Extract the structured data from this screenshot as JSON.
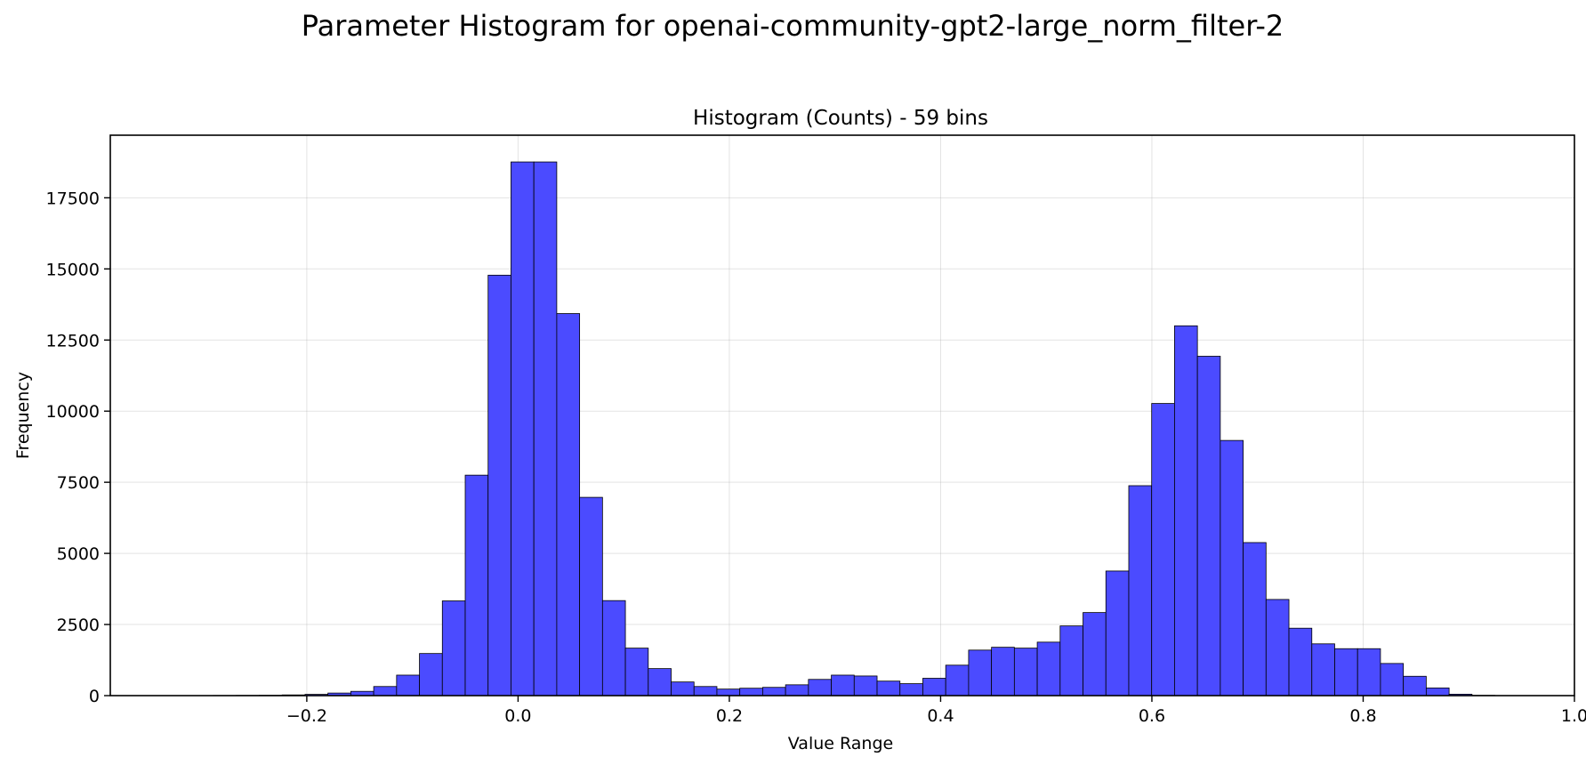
{
  "chart_data": {
    "type": "bar",
    "suptitle": "Parameter Histogram for openai-community-gpt2-large_norm_filter-2",
    "title": "Histogram (Counts) - 59 bins",
    "xlabel": "Value Range",
    "ylabel": "Frequency",
    "xlim": [
      -0.386,
      1.0
    ],
    "ylim": [
      0,
      19700
    ],
    "xticks": [
      -0.2,
      0.0,
      0.2,
      0.4,
      0.6,
      0.8,
      1.0
    ],
    "xtick_labels": [
      "−0.2",
      "0.0",
      "0.2",
      "0.4",
      "0.6",
      "0.8",
      "1.0"
    ],
    "yticks": [
      0,
      2500,
      5000,
      7500,
      10000,
      12500,
      15000,
      17500
    ],
    "ytick_labels": [
      "0",
      "2500",
      "5000",
      "7500",
      "10000",
      "12500",
      "15000",
      "17500"
    ],
    "bin_start": -0.3316,
    "bin_width": 0.02166,
    "values": [
      2,
      3,
      5,
      8,
      12,
      25,
      45,
      90,
      150,
      320,
      720,
      1480,
      3330,
      7750,
      14780,
      18760,
      18760,
      13430,
      6970,
      3340,
      1670,
      950,
      480,
      320,
      230,
      260,
      290,
      380,
      570,
      720,
      690,
      510,
      420,
      610,
      1070,
      1600,
      1700,
      1670,
      1880,
      2450,
      2920,
      4380,
      7380,
      10270,
      13000,
      11930,
      8970,
      5380,
      3380,
      2370,
      1820,
      1650,
      1650,
      1130,
      680,
      270,
      50,
      10,
      2
    ],
    "bar_color": "#4b4bff",
    "edge_color": "#000000",
    "grid": true
  }
}
